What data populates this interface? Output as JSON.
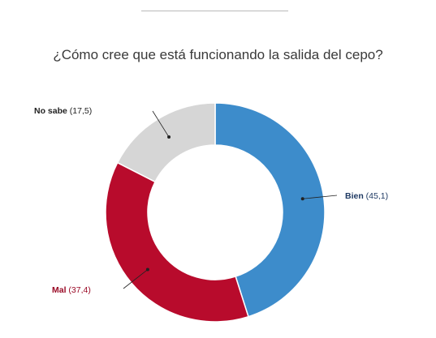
{
  "chart_data": {
    "type": "pie",
    "donut": true,
    "title": "¿Cómo cree que está funcionando la salida del cepo?",
    "slices": [
      {
        "label": "Bien",
        "value": 45.1,
        "value_text": "(45,1)",
        "color": "#3d8ccb",
        "label_color": "#1f3a63"
      },
      {
        "label": "Mal",
        "value": 37.4,
        "value_text": "(37,4)",
        "color": "#b80b2c",
        "label_color": "#9a0a26"
      },
      {
        "label": "No sabe",
        "value": 17.5,
        "value_text": "(17,5)",
        "color": "#d6d6d6",
        "label_color": "#222222"
      }
    ],
    "start": "top",
    "direction": "clockwise",
    "legend": "inline callouts"
  }
}
